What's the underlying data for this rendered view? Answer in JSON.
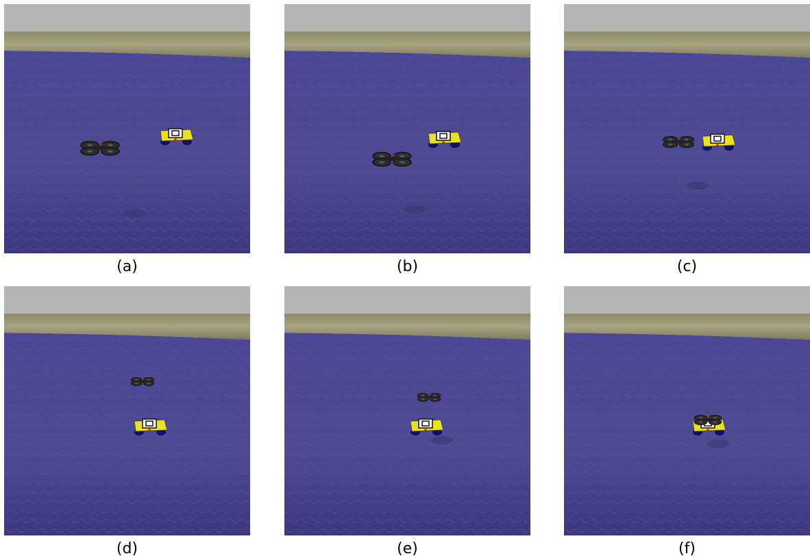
{
  "figure": {
    "panels": [
      {
        "caption": "(a)"
      },
      {
        "caption": "(b)"
      },
      {
        "caption": "(c)"
      },
      {
        "caption": "(d)"
      },
      {
        "caption": "(e)"
      },
      {
        "caption": "(f)"
      }
    ]
  }
}
